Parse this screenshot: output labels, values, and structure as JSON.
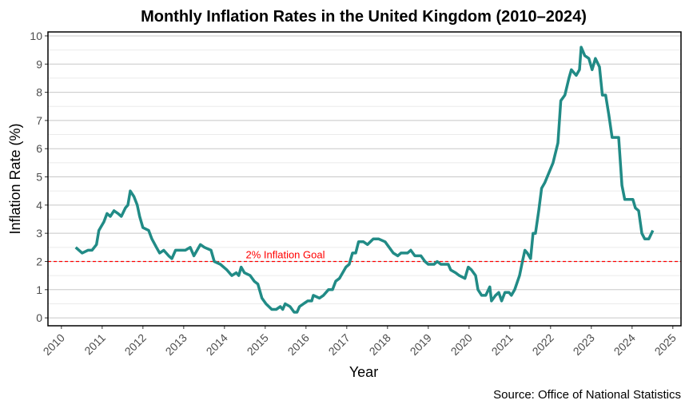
{
  "chart_data": {
    "type": "line",
    "title": "Monthly Inflation Rates in the United Kingdom (2010–2024)",
    "xlabel": "Year",
    "ylabel": "Inflation Rate (%)",
    "source": "Source: Office of National Statistics",
    "xlim": [
      2009.67,
      2025.2
    ],
    "ylim": [
      -0.28,
      10.14
    ],
    "xticks": [
      2010,
      2011,
      2012,
      2013,
      2014,
      2015,
      2016,
      2017,
      2018,
      2019,
      2020,
      2021,
      2022,
      2023,
      2024,
      2025
    ],
    "yticks": [
      0,
      1,
      2,
      3,
      4,
      5,
      6,
      7,
      8,
      9,
      10
    ],
    "grid": true,
    "line_color": "#218b86",
    "reference_line": {
      "value": 2,
      "label": "2% Inflation Goal",
      "color": "#ff0000"
    },
    "series": [
      {
        "name": "Inflation Rate",
        "points": [
          [
            2010.35,
            2.5
          ],
          [
            2010.51,
            2.3
          ],
          [
            2010.65,
            2.4
          ],
          [
            2010.75,
            2.4
          ],
          [
            2010.86,
            2.6
          ],
          [
            2010.92,
            3.1
          ],
          [
            2011.04,
            3.4
          ],
          [
            2011.12,
            3.7
          ],
          [
            2011.2,
            3.6
          ],
          [
            2011.29,
            3.8
          ],
          [
            2011.39,
            3.7
          ],
          [
            2011.47,
            3.6
          ],
          [
            2011.57,
            3.9
          ],
          [
            2011.63,
            4.0
          ],
          [
            2011.69,
            4.5
          ],
          [
            2011.78,
            4.3
          ],
          [
            2011.86,
            4.0
          ],
          [
            2011.92,
            3.6
          ],
          [
            2012.0,
            3.2
          ],
          [
            2012.14,
            3.1
          ],
          [
            2012.22,
            2.8
          ],
          [
            2012.33,
            2.5
          ],
          [
            2012.41,
            2.3
          ],
          [
            2012.51,
            2.4
          ],
          [
            2012.63,
            2.2
          ],
          [
            2012.71,
            2.1
          ],
          [
            2012.8,
            2.4
          ],
          [
            2013.04,
            2.4
          ],
          [
            2013.16,
            2.5
          ],
          [
            2013.25,
            2.2
          ],
          [
            2013.41,
            2.6
          ],
          [
            2013.51,
            2.5
          ],
          [
            2013.67,
            2.4
          ],
          [
            2013.75,
            2.0
          ],
          [
            2013.9,
            1.9
          ],
          [
            2014.06,
            1.7
          ],
          [
            2014.18,
            1.5
          ],
          [
            2014.29,
            1.6
          ],
          [
            2014.35,
            1.5
          ],
          [
            2014.41,
            1.8
          ],
          [
            2014.49,
            1.6
          ],
          [
            2014.63,
            1.5
          ],
          [
            2014.73,
            1.3
          ],
          [
            2014.82,
            1.2
          ],
          [
            2014.92,
            0.7
          ],
          [
            2015.02,
            0.5
          ],
          [
            2015.16,
            0.3
          ],
          [
            2015.27,
            0.3
          ],
          [
            2015.37,
            0.4
          ],
          [
            2015.43,
            0.3
          ],
          [
            2015.49,
            0.5
          ],
          [
            2015.61,
            0.4
          ],
          [
            2015.71,
            0.2
          ],
          [
            2015.78,
            0.2
          ],
          [
            2015.84,
            0.4
          ],
          [
            2016.04,
            0.6
          ],
          [
            2016.14,
            0.6
          ],
          [
            2016.18,
            0.8
          ],
          [
            2016.33,
            0.7
          ],
          [
            2016.43,
            0.8
          ],
          [
            2016.55,
            1.0
          ],
          [
            2016.65,
            1.0
          ],
          [
            2016.73,
            1.3
          ],
          [
            2016.82,
            1.4
          ],
          [
            2016.98,
            1.8
          ],
          [
            2017.06,
            1.9
          ],
          [
            2017.14,
            2.3
          ],
          [
            2017.22,
            2.3
          ],
          [
            2017.29,
            2.7
          ],
          [
            2017.41,
            2.7
          ],
          [
            2017.51,
            2.6
          ],
          [
            2017.65,
            2.8
          ],
          [
            2017.78,
            2.8
          ],
          [
            2017.94,
            2.7
          ],
          [
            2018.04,
            2.5
          ],
          [
            2018.14,
            2.3
          ],
          [
            2018.25,
            2.2
          ],
          [
            2018.33,
            2.3
          ],
          [
            2018.49,
            2.3
          ],
          [
            2018.57,
            2.4
          ],
          [
            2018.67,
            2.2
          ],
          [
            2018.82,
            2.2
          ],
          [
            2018.92,
            2.0
          ],
          [
            2019.0,
            1.9
          ],
          [
            2019.14,
            1.9
          ],
          [
            2019.22,
            2.0
          ],
          [
            2019.31,
            1.9
          ],
          [
            2019.49,
            1.9
          ],
          [
            2019.55,
            1.7
          ],
          [
            2019.67,
            1.6
          ],
          [
            2019.76,
            1.5
          ],
          [
            2019.9,
            1.4
          ],
          [
            2019.98,
            1.8
          ],
          [
            2020.06,
            1.7
          ],
          [
            2020.16,
            1.5
          ],
          [
            2020.22,
            1.0
          ],
          [
            2020.31,
            0.8
          ],
          [
            2020.41,
            0.8
          ],
          [
            2020.51,
            1.1
          ],
          [
            2020.55,
            0.6
          ],
          [
            2020.65,
            0.8
          ],
          [
            2020.73,
            0.9
          ],
          [
            2020.8,
            0.6
          ],
          [
            2020.88,
            0.9
          ],
          [
            2020.98,
            0.9
          ],
          [
            2021.04,
            0.8
          ],
          [
            2021.12,
            1.0
          ],
          [
            2021.24,
            1.5
          ],
          [
            2021.31,
            2.0
          ],
          [
            2021.37,
            2.4
          ],
          [
            2021.43,
            2.3
          ],
          [
            2021.51,
            2.1
          ],
          [
            2021.57,
            3.0
          ],
          [
            2021.63,
            3.0
          ],
          [
            2021.71,
            3.8
          ],
          [
            2021.78,
            4.6
          ],
          [
            2021.86,
            4.8
          ],
          [
            2022.06,
            5.5
          ],
          [
            2022.18,
            6.2
          ],
          [
            2022.25,
            7.7
          ],
          [
            2022.35,
            7.9
          ],
          [
            2022.45,
            8.5
          ],
          [
            2022.51,
            8.8
          ],
          [
            2022.63,
            8.6
          ],
          [
            2022.71,
            8.8
          ],
          [
            2022.75,
            9.6
          ],
          [
            2022.84,
            9.3
          ],
          [
            2022.94,
            9.2
          ],
          [
            2023.02,
            8.8
          ],
          [
            2023.1,
            9.2
          ],
          [
            2023.2,
            8.9
          ],
          [
            2023.27,
            7.9
          ],
          [
            2023.35,
            7.9
          ],
          [
            2023.43,
            7.2
          ],
          [
            2023.51,
            6.4
          ],
          [
            2023.67,
            6.4
          ],
          [
            2023.75,
            4.7
          ],
          [
            2023.82,
            4.2
          ],
          [
            2024.02,
            4.2
          ],
          [
            2024.08,
            3.9
          ],
          [
            2024.16,
            3.8
          ],
          [
            2024.24,
            3.0
          ],
          [
            2024.31,
            2.8
          ],
          [
            2024.41,
            2.8
          ],
          [
            2024.51,
            3.1
          ]
        ]
      }
    ]
  }
}
